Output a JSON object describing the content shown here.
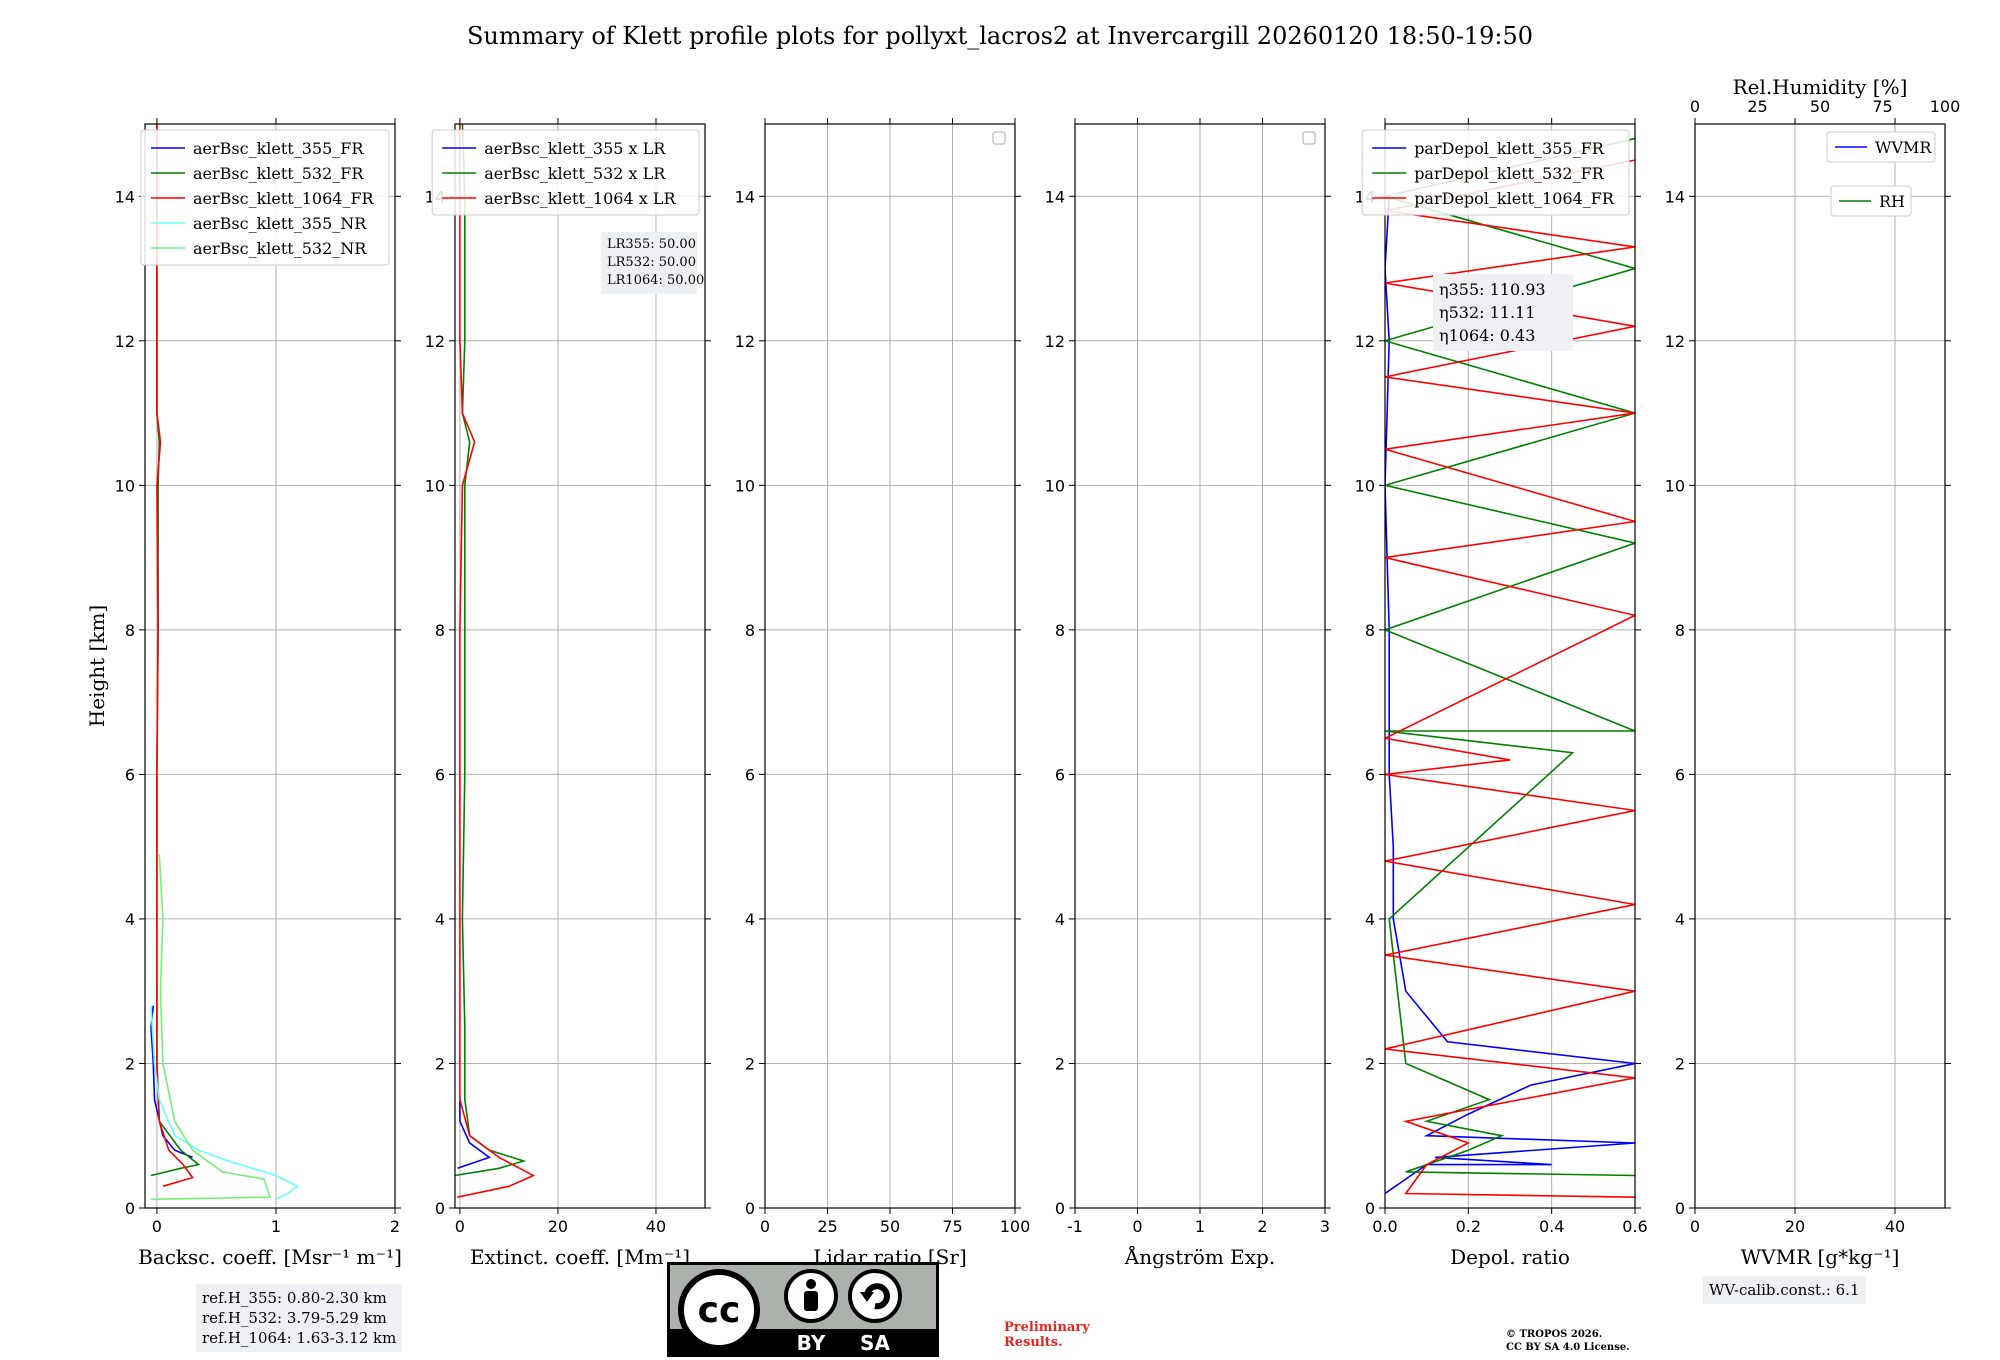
{
  "title": "Summary of Klett profile plots for pollyxt_lacros2 at Invercargill 20260120 18:50-19:50",
  "y_axis_label": "Height [km]",
  "reference_heights": [
    "ref.H_355: 0.80-2.30 km",
    "ref.H_532: 3.79-5.29 km",
    "ref.H_1064: 1.63-3.12 km"
  ],
  "wv_calib": "WV-calib.const.: 6.1",
  "preliminary": [
    "Preliminary",
    "Results."
  ],
  "copyright": [
    "© TROPOS 2026.",
    "CC BY SA 4.0 License."
  ],
  "license_badge": {
    "by": "BY",
    "sa": "SA",
    "cc": "cc"
  },
  "colors": {
    "blue": "#0000ff",
    "green": "#008000",
    "red": "#ff0000",
    "cyan": "#66ffff",
    "lightgreen": "#77ee77",
    "grid": "#b0b0b0"
  },
  "chart_data": [
    {
      "type": "line",
      "id": "backscatter",
      "xlabel": "Backsc. coeff. [Msr⁻¹ m⁻¹]",
      "ylabel": "Height [km]",
      "xlim": [
        -0.1,
        2
      ],
      "ylim": [
        0,
        15
      ],
      "xticks": [
        0,
        1,
        2
      ],
      "yticks": [
        0,
        2,
        4,
        6,
        8,
        10,
        12,
        14
      ],
      "legend_position": "top-right",
      "series": [
        {
          "name": "aerBsc_klett_355_FR",
          "color": "blue",
          "points": [
            [
              0.3,
              0.7
            ],
            [
              0.15,
              0.8
            ],
            [
              0.05,
              1.0
            ],
            [
              -0.02,
              1.5
            ],
            [
              -0.03,
              2.0
            ],
            [
              -0.05,
              2.5
            ],
            [
              -0.03,
              2.8
            ]
          ]
        },
        {
          "name": "aerBsc_klett_532_FR",
          "color": "green",
          "points": [
            [
              -0.05,
              0.45
            ],
            [
              0.2,
              0.55
            ],
            [
              0.35,
              0.6
            ],
            [
              0.2,
              0.8
            ],
            [
              0.02,
              1.2
            ],
            [
              0.0,
              2
            ],
            [
              0.0,
              4
            ],
            [
              0.0,
              6
            ],
            [
              0.01,
              8
            ],
            [
              0.01,
              10
            ],
            [
              0.02,
              10.6
            ],
            [
              0.0,
              11
            ],
            [
              0.0,
              12
            ],
            [
              0.0,
              13
            ],
            [
              0.0,
              15
            ]
          ]
        },
        {
          "name": "aerBsc_klett_1064_FR",
          "color": "red",
          "points": [
            [
              0.05,
              0.3
            ],
            [
              0.3,
              0.42
            ],
            [
              0.22,
              0.6
            ],
            [
              0.1,
              0.8
            ],
            [
              0.02,
              1.2
            ],
            [
              0.0,
              2
            ],
            [
              0.0,
              4
            ],
            [
              0.0,
              6
            ],
            [
              0.01,
              8
            ],
            [
              0.0,
              10
            ],
            [
              0.03,
              10.6
            ],
            [
              0.0,
              11
            ],
            [
              0.0,
              12
            ],
            [
              0.0,
              13
            ],
            [
              0.0,
              15
            ]
          ]
        },
        {
          "name": "aerBsc_klett_355_NR",
          "color": "cyan",
          "points": [
            [
              1.0,
              0.12
            ],
            [
              1.1,
              0.2
            ],
            [
              1.18,
              0.3
            ],
            [
              1.0,
              0.45
            ],
            [
              0.6,
              0.65
            ],
            [
              0.35,
              0.8
            ],
            [
              0.15,
              1.0
            ],
            [
              0.02,
              1.5
            ],
            [
              -0.02,
              2.0
            ],
            [
              -0.05,
              2.8
            ]
          ]
        },
        {
          "name": "aerBsc_klett_532_NR",
          "color": "lightgreen",
          "points": [
            [
              -0.05,
              0.12
            ],
            [
              0.95,
              0.15
            ],
            [
              0.9,
              0.4
            ],
            [
              0.55,
              0.5
            ],
            [
              0.3,
              0.8
            ],
            [
              0.15,
              1.2
            ],
            [
              0.05,
              2.0
            ],
            [
              0.03,
              3.0
            ],
            [
              0.05,
              4.0
            ],
            [
              0.02,
              4.9
            ]
          ]
        }
      ]
    },
    {
      "type": "line",
      "id": "extinction",
      "xlabel": "Extinct. coeff. [Mm⁻¹]",
      "xlim": [
        -1,
        50
      ],
      "ylim": [
        0,
        15
      ],
      "xticks": [
        0,
        20,
        40
      ],
      "yticks": [
        0,
        2,
        4,
        6,
        8,
        10,
        12,
        14
      ],
      "legend_position": "top-right",
      "annotation": [
        "LR355: 50.00",
        "LR532: 50.00",
        "LR1064: 50.00"
      ],
      "series": [
        {
          "name": "aerBsc_klett_355 x LR",
          "color": "blue",
          "points": [
            [
              -0.5,
              0.55
            ],
            [
              6,
              0.7
            ],
            [
              2,
              0.9
            ],
            [
              0,
              1.2
            ],
            [
              0,
              1.5
            ]
          ]
        },
        {
          "name": "aerBsc_klett_532 x LR",
          "color": "green",
          "points": [
            [
              -1,
              0.45
            ],
            [
              8,
              0.55
            ],
            [
              13,
              0.65
            ],
            [
              6,
              0.8
            ],
            [
              2,
              1.0
            ],
            [
              1,
              1.5
            ],
            [
              1,
              2.5
            ],
            [
              0.5,
              4
            ],
            [
              1,
              6
            ],
            [
              1,
              8
            ],
            [
              1,
              10
            ],
            [
              2,
              10.6
            ],
            [
              0.5,
              11
            ],
            [
              1,
              12
            ],
            [
              1,
              13
            ],
            [
              1,
              14
            ],
            [
              0.5,
              15
            ]
          ]
        },
        {
          "name": "aerBsc_klett_1064 x LR",
          "color": "red",
          "points": [
            [
              -0.5,
              0.15
            ],
            [
              10,
              0.3
            ],
            [
              15,
              0.45
            ],
            [
              8,
              0.7
            ],
            [
              2,
              1.0
            ],
            [
              0,
              1.5
            ],
            [
              0,
              4
            ],
            [
              0,
              8
            ],
            [
              0.5,
              10
            ],
            [
              3,
              10.6
            ],
            [
              0.5,
              11
            ],
            [
              0,
              12
            ],
            [
              0,
              14
            ],
            [
              0,
              15
            ]
          ]
        }
      ]
    },
    {
      "type": "line",
      "id": "lidar_ratio",
      "xlabel": "Lidar ratio [Sr]",
      "xlim": [
        0,
        100
      ],
      "ylim": [
        0,
        15
      ],
      "xticks": [
        0,
        25,
        50,
        75,
        100
      ],
      "yticks": [
        0,
        2,
        4,
        6,
        8,
        10,
        12,
        14
      ],
      "series": []
    },
    {
      "type": "line",
      "id": "angstrom",
      "xlabel": "Ångström Exp.",
      "xlim": [
        -1,
        3
      ],
      "ylim": [
        0,
        15
      ],
      "xticks": [
        -1,
        0,
        1,
        2,
        3
      ],
      "yticks": [
        0,
        2,
        4,
        6,
        8,
        10,
        12,
        14
      ],
      "series": []
    },
    {
      "type": "line",
      "id": "depol",
      "xlabel": "Depol. ratio",
      "xlim": [
        0,
        0.6
      ],
      "ylim": [
        0,
        15
      ],
      "xticks": [
        0.0,
        0.2,
        0.4,
        0.6
      ],
      "yticks": [
        0,
        2,
        4,
        6,
        8,
        10,
        12,
        14
      ],
      "legend_position": "top-right",
      "annotation": [
        "η355: 110.93",
        "η532: 11.11",
        "η1064: 0.43"
      ],
      "series": [
        {
          "name": "parDepol_klett_355_FR",
          "color": "blue",
          "points": [
            [
              0.0,
              0.2
            ],
            [
              0.1,
              0.6
            ],
            [
              0.4,
              0.6
            ],
            [
              0.12,
              0.7
            ],
            [
              0.6,
              0.9
            ],
            [
              0.1,
              1.0
            ],
            [
              0.2,
              1.3
            ],
            [
              0.35,
              1.7
            ],
            [
              0.6,
              2.0
            ],
            [
              0.15,
              2.3
            ],
            [
              0.05,
              3.0
            ],
            [
              0.02,
              4.0
            ],
            [
              0.02,
              5.0
            ],
            [
              0.01,
              6.0
            ],
            [
              0.01,
              7.0
            ],
            [
              0.01,
              8.0
            ],
            [
              0.0,
              10.0
            ],
            [
              0.01,
              12.0
            ],
            [
              0.0,
              13.0
            ],
            [
              0.01,
              14.0
            ]
          ]
        },
        {
          "name": "parDepol_klett_532_FR",
          "color": "green",
          "points": [
            [
              0.6,
              0.45
            ],
            [
              0.05,
              0.5
            ],
            [
              0.2,
              0.8
            ],
            [
              0.28,
              1.0
            ],
            [
              0.1,
              1.2
            ],
            [
              0.25,
              1.5
            ],
            [
              0.05,
              2.0
            ],
            [
              0.01,
              4.0
            ],
            [
              0.45,
              6.3
            ],
            [
              0.0,
              6.6
            ],
            [
              0.6,
              6.6
            ],
            [
              0.0,
              8.0
            ],
            [
              0.6,
              9.2
            ],
            [
              0.0,
              10.0
            ],
            [
              0.6,
              11.0
            ],
            [
              0.0,
              12.0
            ],
            [
              0.6,
              13.0
            ],
            [
              0.0,
              14.0
            ],
            [
              0.6,
              14.8
            ]
          ]
        },
        {
          "name": "parDepol_klett_1064_FR",
          "color": "red",
          "points": [
            [
              0.6,
              0.15
            ],
            [
              0.05,
              0.2
            ],
            [
              0.1,
              0.6
            ],
            [
              0.2,
              0.9
            ],
            [
              0.05,
              1.2
            ],
            [
              0.6,
              1.8
            ],
            [
              0.0,
              2.2
            ],
            [
              0.6,
              3.0
            ],
            [
              0.0,
              3.5
            ],
            [
              0.6,
              4.2
            ],
            [
              0.0,
              4.8
            ],
            [
              0.6,
              5.5
            ],
            [
              0.0,
              6.0
            ],
            [
              0.3,
              6.2
            ],
            [
              0.0,
              6.5
            ],
            [
              0.6,
              8.2
            ],
            [
              0.0,
              9.0
            ],
            [
              0.6,
              9.5
            ],
            [
              0.0,
              10.5
            ],
            [
              0.6,
              11.0
            ],
            [
              0.0,
              11.5
            ],
            [
              0.6,
              12.2
            ],
            [
              0.0,
              12.8
            ],
            [
              0.6,
              13.3
            ],
            [
              0.0,
              13.8
            ],
            [
              0.6,
              14.5
            ]
          ]
        }
      ]
    },
    {
      "type": "line",
      "id": "wvmr",
      "xlabel": "WVMR [g*kg⁻¹]",
      "top_xlabel": "Rel.Humidity [%]",
      "xlim": [
        0,
        50
      ],
      "ylim": [
        0,
        15
      ],
      "xticks": [
        0,
        20,
        40
      ],
      "top_xticks": [
        0,
        25,
        50,
        75,
        100
      ],
      "yticks": [
        0,
        2,
        4,
        6,
        8,
        10,
        12,
        14
      ],
      "series": [
        {
          "name": "WVMR",
          "color": "blue",
          "points": []
        },
        {
          "name": "RH",
          "color": "green",
          "points": []
        }
      ]
    }
  ]
}
